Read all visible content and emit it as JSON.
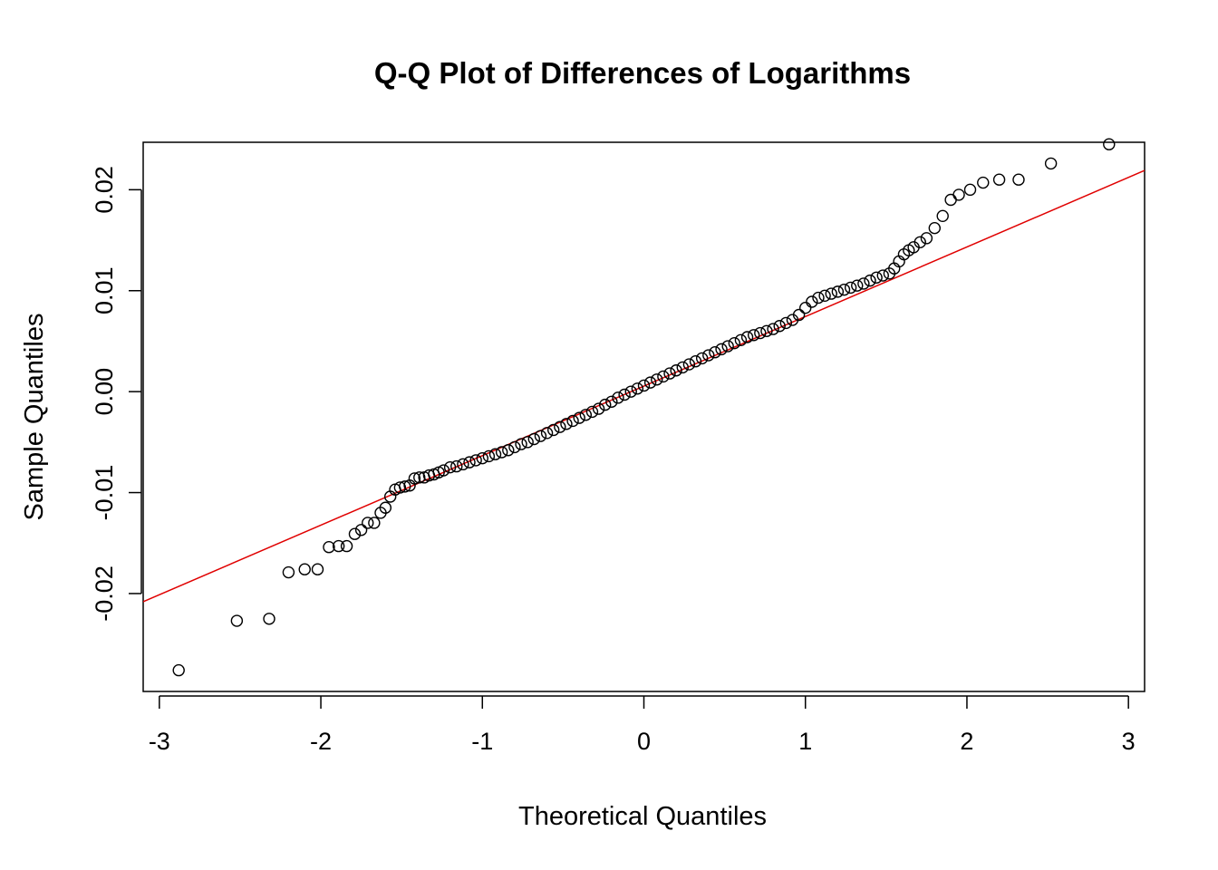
{
  "chart_data": {
    "type": "scatter",
    "title": "Q-Q Plot of Differences of Logarithms",
    "xlabel": "Theoretical Quantiles",
    "ylabel": "Sample Quantiles",
    "xlim": [
      -3.1,
      3.1
    ],
    "ylim": [
      -0.0297,
      0.0247
    ],
    "x_ticks": [
      -3,
      -2,
      -1,
      0,
      1,
      2,
      3
    ],
    "x_tick_labels": [
      "-3",
      "-2",
      "-1",
      "0",
      "1",
      "2",
      "3"
    ],
    "y_ticks": [
      -0.02,
      -0.01,
      0.0,
      0.01,
      0.02
    ],
    "y_tick_labels": [
      "-0.02",
      "-0.01",
      "0.00",
      "0.01",
      "0.02"
    ],
    "grid": false,
    "legend": "none",
    "reference_line": {
      "slope": 0.00689,
      "intercept": 0.00055,
      "color": "#e00000"
    },
    "point_color": "#000000",
    "series": [
      {
        "values": [
          [
            -2.88,
            -0.0276
          ],
          [
            -2.52,
            -0.0227
          ],
          [
            -2.32,
            -0.0225
          ],
          [
            -2.2,
            -0.0179
          ],
          [
            -2.1,
            -0.0176
          ],
          [
            -2.02,
            -0.0176
          ],
          [
            -1.95,
            -0.0154
          ],
          [
            -1.89,
            -0.0153
          ],
          [
            -1.84,
            -0.0153
          ],
          [
            -1.79,
            -0.0141
          ],
          [
            -1.75,
            -0.0137
          ],
          [
            -1.71,
            -0.013
          ],
          [
            -1.67,
            -0.013
          ],
          [
            -1.63,
            -0.012
          ],
          [
            -1.6,
            -0.0115
          ],
          [
            -1.57,
            -0.0104
          ],
          [
            -1.54,
            -0.0097
          ],
          [
            -1.51,
            -0.0095
          ],
          [
            -1.48,
            -0.0094
          ],
          [
            -1.45,
            -0.0093
          ],
          [
            -1.42,
            -0.0086
          ],
          [
            -1.39,
            -0.0085
          ],
          [
            -1.36,
            -0.0085
          ],
          [
            -1.33,
            -0.0083
          ],
          [
            -1.3,
            -0.0082
          ],
          [
            -1.27,
            -0.008
          ],
          [
            -1.24,
            -0.0078
          ],
          [
            -1.2,
            -0.0075
          ],
          [
            -1.16,
            -0.0074
          ],
          [
            -1.12,
            -0.0072
          ],
          [
            -1.08,
            -0.007
          ],
          [
            -1.04,
            -0.0068
          ],
          [
            -1.0,
            -0.0066
          ],
          [
            -0.96,
            -0.0064
          ],
          [
            -0.92,
            -0.0062
          ],
          [
            -0.88,
            -0.006
          ],
          [
            -0.84,
            -0.0058
          ],
          [
            -0.8,
            -0.0055
          ],
          [
            -0.76,
            -0.0052
          ],
          [
            -0.72,
            -0.005
          ],
          [
            -0.68,
            -0.0047
          ],
          [
            -0.64,
            -0.0044
          ],
          [
            -0.6,
            -0.0041
          ],
          [
            -0.56,
            -0.0038
          ],
          [
            -0.52,
            -0.0035
          ],
          [
            -0.48,
            -0.0032
          ],
          [
            -0.44,
            -0.0029
          ],
          [
            -0.4,
            -0.0026
          ],
          [
            -0.36,
            -0.0023
          ],
          [
            -0.32,
            -0.002
          ],
          [
            -0.28,
            -0.0017
          ],
          [
            -0.24,
            -0.0013
          ],
          [
            -0.2,
            -0.001
          ],
          [
            -0.16,
            -0.0006
          ],
          [
            -0.12,
            -0.0003
          ],
          [
            -0.08,
            0.0
          ],
          [
            -0.04,
            0.0003
          ],
          [
            0.0,
            0.0006
          ],
          [
            0.04,
            0.0009
          ],
          [
            0.08,
            0.0012
          ],
          [
            0.12,
            0.0015
          ],
          [
            0.16,
            0.0018
          ],
          [
            0.2,
            0.0021
          ],
          [
            0.24,
            0.0024
          ],
          [
            0.28,
            0.0027
          ],
          [
            0.32,
            0.003
          ],
          [
            0.36,
            0.0033
          ],
          [
            0.4,
            0.0036
          ],
          [
            0.44,
            0.0039
          ],
          [
            0.48,
            0.0042
          ],
          [
            0.52,
            0.0045
          ],
          [
            0.56,
            0.0048
          ],
          [
            0.6,
            0.0051
          ],
          [
            0.64,
            0.0054
          ],
          [
            0.68,
            0.0056
          ],
          [
            0.72,
            0.0058
          ],
          [
            0.76,
            0.006
          ],
          [
            0.8,
            0.0062
          ],
          [
            0.84,
            0.0065
          ],
          [
            0.88,
            0.0068
          ],
          [
            0.92,
            0.0071
          ],
          [
            0.96,
            0.0076
          ],
          [
            1.0,
            0.0083
          ],
          [
            1.04,
            0.0089
          ],
          [
            1.08,
            0.0093
          ],
          [
            1.12,
            0.0095
          ],
          [
            1.16,
            0.0097
          ],
          [
            1.2,
            0.0099
          ],
          [
            1.24,
            0.0101
          ],
          [
            1.28,
            0.0103
          ],
          [
            1.32,
            0.0105
          ],
          [
            1.36,
            0.0107
          ],
          [
            1.4,
            0.011
          ],
          [
            1.44,
            0.0113
          ],
          [
            1.48,
            0.0115
          ],
          [
            1.52,
            0.0117
          ],
          [
            1.55,
            0.0122
          ],
          [
            1.58,
            0.0129
          ],
          [
            1.61,
            0.0136
          ],
          [
            1.64,
            0.014
          ],
          [
            1.67,
            0.0143
          ],
          [
            1.71,
            0.0148
          ],
          [
            1.75,
            0.0152
          ],
          [
            1.8,
            0.0162
          ],
          [
            1.85,
            0.0174
          ],
          [
            1.9,
            0.019
          ],
          [
            1.95,
            0.0195
          ],
          [
            2.02,
            0.02
          ],
          [
            2.1,
            0.0207
          ],
          [
            2.2,
            0.021
          ],
          [
            2.32,
            0.021
          ],
          [
            2.52,
            0.0226
          ],
          [
            2.88,
            0.0245
          ]
        ]
      }
    ]
  }
}
